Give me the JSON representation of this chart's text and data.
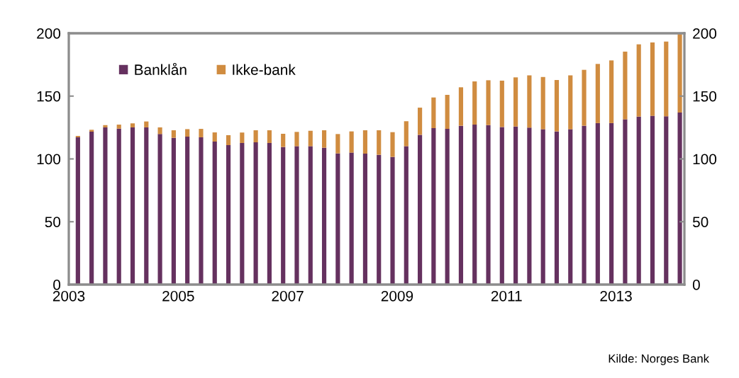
{
  "chart_data": {
    "type": "bar",
    "stacked": true,
    "x": [
      "2003-03",
      "2003-06",
      "2003-09",
      "2003-12",
      "2004-03",
      "2004-06",
      "2004-09",
      "2004-12",
      "2005-03",
      "2005-06",
      "2005-09",
      "2005-12",
      "2006-03",
      "2006-06",
      "2006-09",
      "2006-12",
      "2007-03",
      "2007-06",
      "2007-09",
      "2007-12",
      "2008-03",
      "2008-06",
      "2008-09",
      "2008-12",
      "2009-03",
      "2009-06",
      "2009-09",
      "2009-12",
      "2010-03",
      "2010-06",
      "2010-09",
      "2010-12",
      "2011-03",
      "2011-06",
      "2011-09",
      "2011-12",
      "2012-03",
      "2012-06",
      "2012-09",
      "2012-12",
      "2013-03",
      "2013-06",
      "2013-09",
      "2013-12",
      "2014-03"
    ],
    "series": [
      {
        "name": "Banklån",
        "color": "#65315f",
        "values": [
          117.2,
          121.7,
          125.1,
          124.1,
          125.1,
          125.1,
          119.8,
          116.8,
          117.7,
          117.2,
          113.8,
          111.0,
          112.7,
          113.2,
          112.7,
          109.5,
          110.1,
          110.1,
          108.9,
          104.4,
          105.0,
          104.2,
          103.3,
          101.6,
          110.1,
          119.2,
          124.5,
          123.9,
          126.4,
          127.3,
          126.9,
          125.4,
          125.8,
          124.9,
          123.6,
          121.9,
          123.6,
          126.4,
          128.5,
          128.5,
          131.5,
          133.7,
          134.3,
          133.9,
          136.9
        ]
      },
      {
        "name": "Ikke-bank",
        "color": "#d08c40",
        "values": [
          1.1,
          1.5,
          1.8,
          3.2,
          3.2,
          4.7,
          5.3,
          6.0,
          6.0,
          6.7,
          7.3,
          7.9,
          8.3,
          9.6,
          10.1,
          10.5,
          11.4,
          12.3,
          13.9,
          15.4,
          16.9,
          18.6,
          19.5,
          19.7,
          19.9,
          21.6,
          24.4,
          27.1,
          30.6,
          34.4,
          35.7,
          36.9,
          39.1,
          41.6,
          41.6,
          40.9,
          42.9,
          44.5,
          47.1,
          49.9,
          53.9,
          57.5,
          58.4,
          59.5,
          62.4
        ]
      }
    ],
    "xlim": [
      "2003-01",
      "2014-04"
    ],
    "xticks": [
      {
        "value": "2003",
        "label": "2003"
      },
      {
        "value": "2005",
        "label": "2005"
      },
      {
        "value": "2007",
        "label": "2007"
      },
      {
        "value": "2009",
        "label": "2009"
      },
      {
        "value": "2011",
        "label": "2011"
      },
      {
        "value": "2013",
        "label": "2013"
      }
    ],
    "ylim": [
      0,
      200
    ],
    "yticks": [
      0,
      50,
      100,
      150,
      200
    ],
    "y2lim": [
      0,
      200
    ],
    "y2ticks": [
      0,
      50,
      100,
      150,
      200
    ],
    "grid": false,
    "legend": "top left",
    "annotations": [
      "Kilde: Norges Bank"
    ]
  }
}
